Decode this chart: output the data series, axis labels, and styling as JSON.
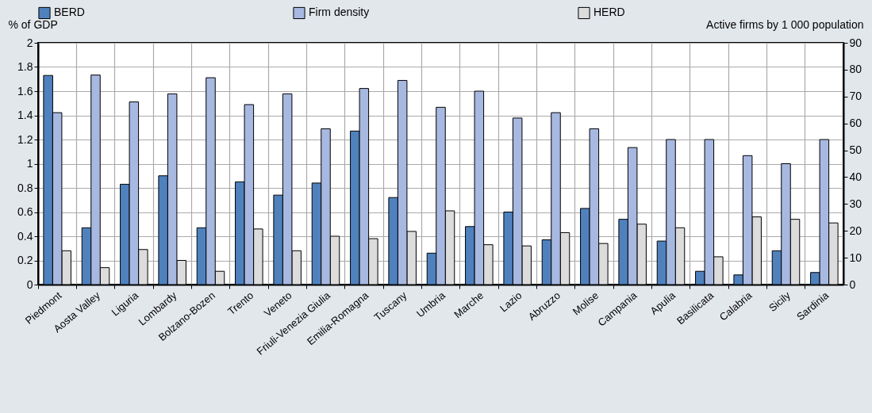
{
  "chart_data": {
    "type": "bar",
    "ylabel": "% of GDP",
    "y2label": "Active firms by 1 000 population",
    "categories": [
      "Piedmont",
      "Aosta Valley",
      "Liguria",
      "Lombardy",
      "Bolzano-Bozen",
      "Trento",
      "Veneto",
      "Friuli-Venezia Giulia",
      "Emilia-Romagna",
      "Tuscany",
      "Umbria",
      "Marche",
      "Lazio",
      "Abruzzo",
      "Molise",
      "Campania",
      "Apulia",
      "Basilicata",
      "Calabria",
      "Sicily",
      "Sardinia"
    ],
    "series": [
      {
        "name": "BERD",
        "color": "#4f81bd",
        "values": [
          1.73,
          0.47,
          0.83,
          0.9,
          0.47,
          0.85,
          0.74,
          0.84,
          1.27,
          0.72,
          0.26,
          0.48,
          0.6,
          0.37,
          0.63,
          0.54,
          0.36,
          0.11,
          0.08,
          0.28,
          0.1
        ]
      },
      {
        "name": "Firm density",
        "color": "#a7b8e1",
        "axis": "y2",
        "values": [
          64,
          78,
          68,
          71,
          77,
          67,
          71,
          58,
          73,
          76,
          66,
          72,
          62,
          64,
          58,
          51,
          54,
          54,
          48,
          45,
          54
        ]
      },
      {
        "name": "HERD",
        "color": "#dcdcdc",
        "values": [
          0.28,
          0.14,
          0.29,
          0.2,
          0.11,
          0.46,
          0.28,
          0.4,
          0.38,
          0.44,
          0.61,
          0.33,
          0.32,
          0.43,
          0.34,
          0.5,
          0.47,
          0.23,
          0.56,
          0.54,
          0.51
        ]
      }
    ],
    "ylim": [
      0,
      2
    ],
    "yticks": [
      {
        "value": 0,
        "label": "0"
      },
      0.2,
      0.4,
      0.6,
      0.8,
      {
        "value": 1,
        "label": "1"
      },
      1.2,
      1.4,
      1.6,
      1.8,
      {
        "value": 2,
        "label": "2"
      }
    ],
    "y2lim": [
      0,
      90
    ],
    "y2ticks": [
      0,
      10,
      20,
      30,
      40,
      50,
      60,
      70,
      80,
      90
    ],
    "grid": true,
    "legend": "top"
  }
}
